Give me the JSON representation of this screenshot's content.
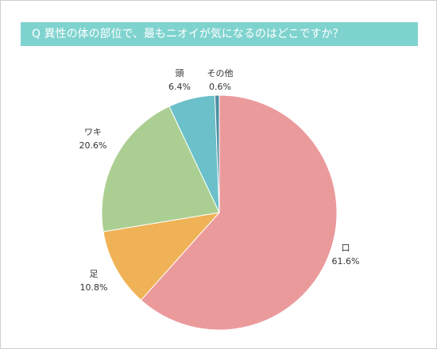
{
  "chart_data": {
    "type": "pie",
    "title": "Q  異性の体の部位で、最もニオイが気になるのはどこですか？",
    "slices": [
      {
        "label": "口",
        "value": 61.6,
        "value_label": "61.6%",
        "color": "#eb9a9c"
      },
      {
        "label": "足",
        "value": 10.8,
        "value_label": "10.8%",
        "color": "#f0b256"
      },
      {
        "label": "ワキ",
        "value": 20.6,
        "value_label": "20.6%",
        "color": "#abcf92"
      },
      {
        "label": "頭",
        "value": 6.4,
        "value_label": "6.4%",
        "color": "#6bc0c9"
      },
      {
        "label": "その他",
        "value": 0.6,
        "value_label": "0.6%",
        "color": "#4d8ea3"
      }
    ],
    "legend": "none",
    "grid": false
  }
}
